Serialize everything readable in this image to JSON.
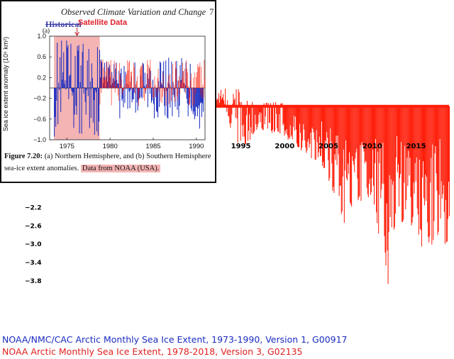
{
  "chart_data": [
    {
      "type": "bar",
      "title": "",
      "series": [
        {
          "name": "NOAA/NMC/CAC Arctic Monthly Sea Ice Extent, 1973-1990, Version 1, G00917",
          "color": "#1a2cc0"
        },
        {
          "name": "NOAA Arctic Monthly Sea Ice Extent, 1978-2018, Version 3, G02135",
          "color": "#ff1e0a"
        }
      ],
      "xlim": [
        1973,
        2019
      ],
      "ylim": [
        -3.8,
        1.0
      ],
      "x_ticks": [
        1995,
        2000,
        2005,
        2010,
        2015
      ],
      "y_ticks": [
        -2.2,
        -2.6,
        -3.0,
        -3.4,
        -3.8
      ],
      "keypoints": [
        {
          "x": 1993,
          "y": 0.35
        },
        {
          "x": 1994,
          "y": -0.45
        },
        {
          "x": 1995,
          "y": -0.95
        },
        {
          "x": 1997,
          "y": -0.5
        },
        {
          "x": 2000,
          "y": -0.6
        },
        {
          "x": 2002,
          "y": -0.9
        },
        {
          "x": 2005,
          "y": -1.35
        },
        {
          "x": 2007,
          "y": -2.55
        },
        {
          "x": 2008,
          "y": -1.9
        },
        {
          "x": 2010,
          "y": -2.0
        },
        {
          "x": 2011,
          "y": -2.6
        },
        {
          "x": 2012,
          "y": -3.55
        },
        {
          "x": 2013,
          "y": -2.3
        },
        {
          "x": 2015,
          "y": -2.6
        },
        {
          "x": 2016,
          "y": -2.9
        },
        {
          "x": 2018,
          "y": -2.85
        }
      ]
    },
    {
      "type": "bar",
      "title": "Sea ice extent anomaly",
      "ylabel": "Sea ice extent anomaly (10⁶ km²)",
      "xlim": [
        1973,
        1991
      ],
      "ylim": [
        -1.0,
        1.0
      ],
      "x_ticks": [
        1975,
        1980,
        1985,
        1990
      ],
      "y_ticks": [
        1.0,
        0.6,
        0.2,
        -0.2,
        -0.6,
        -1.0
      ],
      "shaded_range": [
        1973.5,
        1978.8
      ],
      "series": [
        {
          "name": "NOAA/NMC/CAC (blue)",
          "color": "#1a2cc0"
        },
        {
          "name": "Satellite Data (red)",
          "color": "#ff1e0a"
        }
      ]
    }
  ],
  "inset": {
    "header": "Observed Climate Variation and Change",
    "page": "7",
    "struck_text": "Historical",
    "annotation": "Satellite Data",
    "panel_label": "(a)",
    "ylabel": "Sea ice extent anomaly (10⁶ km²)",
    "caption_bold": "Figure 7.20:",
    "caption_text": " (a) Northern Hemisphere, and (b) Southern Hemisphere sea-ice extent anomalies. ",
    "caption_highlight": "Data from NOAA (USA)."
  },
  "legend": {
    "blue": "NOAA/NMC/CAC Arctic Monthly Sea Ice Extent, 1973-1990, Version 1, G00917",
    "red": "NOAA Arctic Monthly Sea Ice Extent, 1978-2018, Version 3, G02135"
  },
  "colors": {
    "red": "#ff1e0a",
    "blue": "#1a2cc0",
    "shade": "#f4b4b4"
  }
}
